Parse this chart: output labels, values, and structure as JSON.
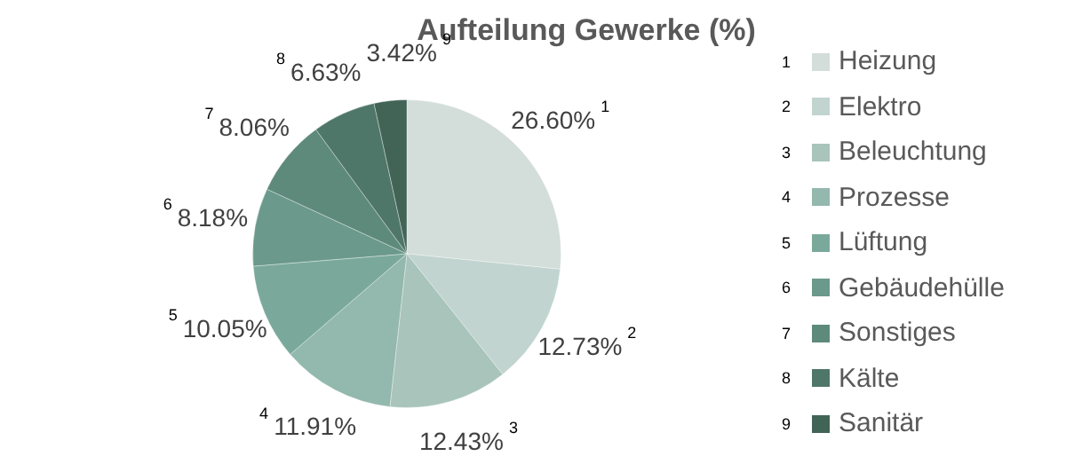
{
  "chart_data": {
    "type": "pie",
    "title": "Aufteilung Gewerke (%)",
    "categories": [
      "Heizung",
      "Elektro",
      "Beleuchtung",
      "Prozesse",
      "Lüftung",
      "Gebäudehülle",
      "Sonstiges",
      "Kälte",
      "Sanitär"
    ],
    "values": [
      26.6,
      12.73,
      12.43,
      11.91,
      10.05,
      8.18,
      8.06,
      6.63,
      3.42
    ],
    "value_labels": [
      "26.60%",
      "12.73%",
      "12.43%",
      "11.91%",
      "10.05%",
      "8.18%",
      "8.06%",
      "6.63%",
      "3.42%"
    ],
    "colors": [
      "#d3ddda",
      "#c1d4cf",
      "#a8c4bb",
      "#93b8ad",
      "#7aa99b",
      "#6b998b",
      "#5e8a7c",
      "#4f7769",
      "#416456"
    ],
    "annotations": [
      {
        "text": "1",
        "x": "Heizung"
      },
      {
        "text": "2",
        "x": "Elektro"
      },
      {
        "text": "3",
        "x": "Beleuchtung"
      },
      {
        "text": "4",
        "x": "Prozesse"
      },
      {
        "text": "5",
        "x": "Lüftung"
      },
      {
        "text": "6",
        "x": "Gebäudehülle"
      },
      {
        "text": "7",
        "x": "Sonstiges"
      },
      {
        "text": "8",
        "x": "Kälte"
      },
      {
        "text": "9",
        "x": "Sanitär"
      }
    ],
    "legend": "right"
  }
}
